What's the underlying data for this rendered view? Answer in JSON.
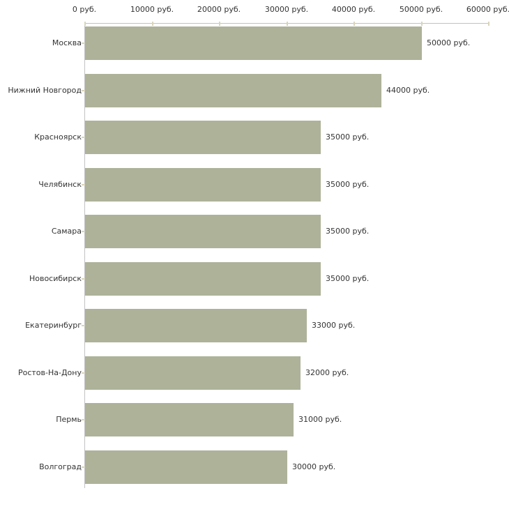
{
  "chart_data": {
    "type": "bar",
    "orientation": "horizontal",
    "title": "",
    "xlabel": "",
    "ylabel": "",
    "unit": "руб.",
    "categories": [
      "Москва",
      "Нижний Новгород",
      "Красноярск",
      "Челябинск",
      "Самара",
      "Новосибирск",
      "Екатеринбург",
      "Ростов-На-Дону",
      "Пермь",
      "Волгоград"
    ],
    "values": [
      50000,
      44000,
      35000,
      35000,
      35000,
      35000,
      33000,
      32000,
      31000,
      30000
    ],
    "value_labels": [
      "50000 руб.",
      "44000 руб.",
      "35000 руб.",
      "35000 руб.",
      "35000 руб.",
      "35000 руб.",
      "33000 руб.",
      "32000 руб.",
      "31000 руб.",
      "30000 руб."
    ],
    "x_axis": {
      "position": "top",
      "min": 0,
      "max": 60000,
      "ticks": [
        0,
        10000,
        20000,
        30000,
        40000,
        50000,
        60000
      ],
      "tick_labels": [
        "0 руб.",
        "10000 руб.",
        "20000 руб.",
        "30000 руб.",
        "40000 руб.",
        "50000 руб.",
        "60000 руб."
      ]
    },
    "grid": false,
    "legend": "none",
    "colors": {
      "bar": "#adb299",
      "axis": "#c2c2c2",
      "tick": "#d9d5bd",
      "text": "#333333",
      "background": "#ffffff"
    }
  }
}
